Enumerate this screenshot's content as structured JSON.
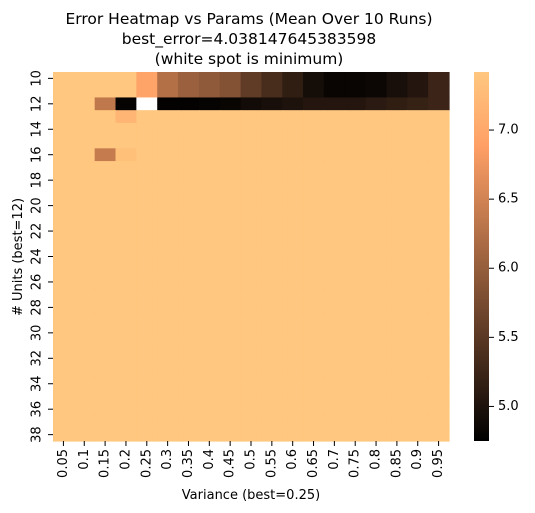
{
  "chart_data": {
    "type": "heatmap",
    "title": [
      "Error Heatmap vs Params (Mean Over 10 Runs)",
      "best_error=4.038147645383598",
      "(white spot is minimum)"
    ],
    "xlabel": "Variance (best=0.25)",
    "ylabel": "# Units (best=12)",
    "x_categories": [
      "0.05",
      "0.1",
      "0.15",
      "0.2",
      "0.25",
      "0.3",
      "0.35",
      "0.4",
      "0.45",
      "0.5",
      "0.55",
      "0.6",
      "0.65",
      "0.7",
      "0.75",
      "0.8",
      "0.85",
      "0.9",
      "0.95"
    ],
    "y_categories": [
      10,
      11,
      12,
      13,
      14,
      15,
      16,
      17,
      18,
      19,
      20,
      21,
      22,
      23,
      24,
      25,
      26,
      27,
      28,
      29,
      30,
      31,
      32,
      33,
      34,
      35,
      36,
      37,
      38
    ],
    "y_tick_labels": [
      "10",
      "12",
      "14",
      "16",
      "18",
      "20",
      "22",
      "24",
      "26",
      "28",
      "30",
      "32",
      "34",
      "36",
      "38"
    ],
    "colormap": "copper",
    "colorbar": {
      "range": [
        4.75,
        7.42
      ],
      "ticks": [
        "5.0",
        "5.5",
        "6.0",
        "6.5",
        "7.0"
      ],
      "tick_values": [
        5.0,
        5.5,
        6.0,
        6.5,
        7.0
      ]
    },
    "default_value": 7.42,
    "minimum": {
      "x": "0.25",
      "y": 12,
      "value": 4.038147645383598,
      "color": "#ffffff"
    },
    "rows": [
      {
        "y": 10,
        "values": [
          7.42,
          7.42,
          7.42,
          7.42,
          6.95,
          6.25,
          6.05,
          5.95,
          5.85,
          5.55,
          5.35,
          5.15,
          4.92,
          4.82,
          4.82,
          4.85,
          4.95,
          5.05,
          5.25
        ]
      },
      {
        "y": 11,
        "values": [
          7.42,
          7.42,
          7.42,
          7.42,
          6.95,
          6.25,
          6.05,
          5.95,
          5.85,
          5.55,
          5.35,
          5.15,
          4.92,
          4.82,
          4.82,
          4.85,
          4.95,
          5.05,
          5.25
        ]
      },
      {
        "y": 12,
        "values": [
          7.42,
          7.42,
          6.35,
          4.8,
          4.038147645383598,
          4.78,
          4.78,
          4.8,
          4.82,
          4.9,
          4.95,
          5.0,
          5.05,
          5.05,
          5.05,
          5.1,
          5.15,
          5.2,
          5.25
        ]
      },
      {
        "y": 13,
        "values": [
          7.42,
          7.42,
          7.42,
          7.18,
          7.42,
          7.42,
          7.42,
          7.42,
          7.42,
          7.42,
          7.42,
          7.42,
          7.42,
          7.42,
          7.42,
          7.42,
          7.42,
          7.42,
          7.42
        ]
      },
      {
        "y": 16,
        "values": [
          7.42,
          7.42,
          6.4,
          7.32,
          7.42,
          7.42,
          7.42,
          7.42,
          7.42,
          7.42,
          7.42,
          7.42,
          7.42,
          7.42,
          7.42,
          7.42,
          7.42,
          7.42,
          7.42
        ]
      }
    ]
  }
}
